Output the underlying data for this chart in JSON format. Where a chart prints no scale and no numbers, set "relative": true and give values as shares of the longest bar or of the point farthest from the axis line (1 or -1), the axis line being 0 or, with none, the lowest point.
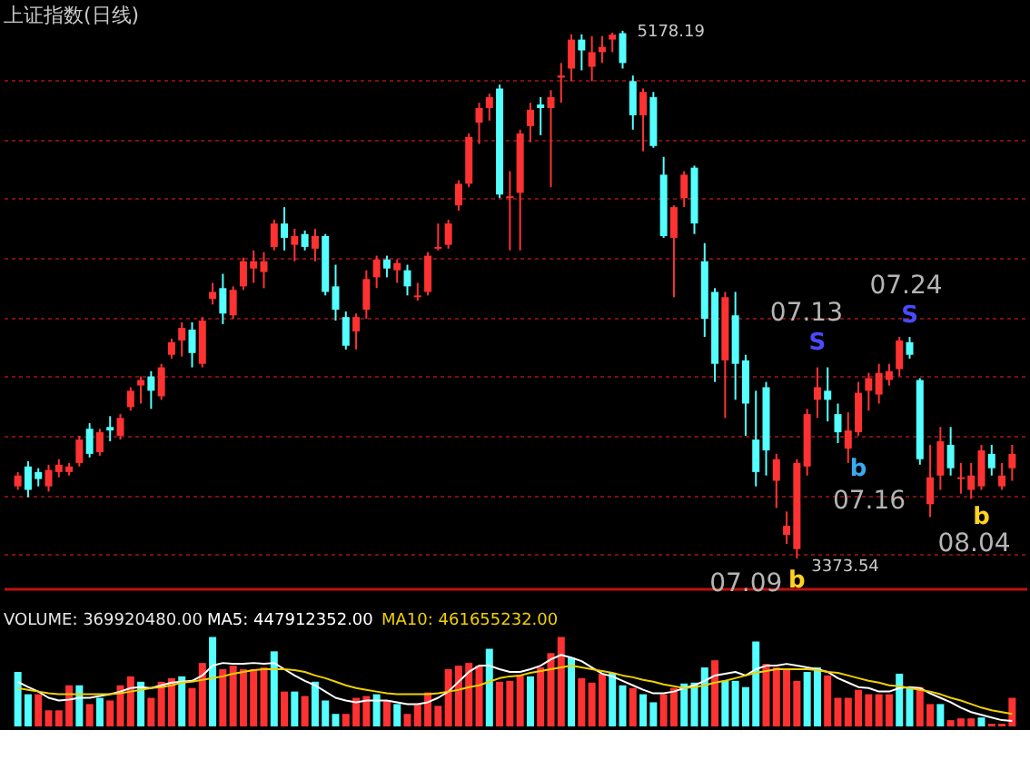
{
  "chart_data": [
    {
      "type": "candlestick",
      "title": "上证指数(日线)",
      "categories": [
        null,
        null,
        null,
        null,
        null,
        null,
        null,
        null,
        null,
        null,
        null,
        null,
        null,
        null,
        null,
        null,
        null,
        null,
        null,
        null,
        null,
        null,
        null,
        null,
        null,
        null,
        null,
        null,
        null,
        null,
        null,
        null,
        null,
        null,
        null,
        null,
        null,
        null,
        null,
        null,
        null,
        null,
        null,
        null,
        null,
        null,
        null,
        null,
        null,
        null,
        null,
        null,
        null,
        null,
        null,
        null,
        null,
        null,
        null,
        null,
        null,
        null,
        null,
        null,
        null,
        null,
        null,
        null,
        null,
        null,
        null,
        null,
        null,
        null,
        null,
        null,
        null,
        null,
        null,
        null,
        null,
        null,
        null,
        null,
        null,
        null,
        null,
        null,
        null,
        null,
        null,
        null,
        null,
        null,
        null,
        null,
        null,
        null
      ],
      "ohlc": [
        [
          3620,
          3669,
          3608,
          3657
        ],
        [
          3688,
          3706,
          3583,
          3608
        ],
        [
          3669,
          3682,
          3620,
          3645
        ],
        [
          3620,
          3694,
          3602,
          3676
        ],
        [
          3669,
          3713,
          3651,
          3694
        ],
        [
          3669,
          3700,
          3657,
          3688
        ],
        [
          3700,
          3793,
          3688,
          3780
        ],
        [
          3817,
          3836,
          3719,
          3731
        ],
        [
          3737,
          3817,
          3725,
          3805
        ],
        [
          3823,
          3860,
          3774,
          3811
        ],
        [
          3793,
          3867,
          3780,
          3854
        ],
        [
          3891,
          3959,
          3879,
          3947
        ],
        [
          3965,
          3996,
          3903,
          3984
        ],
        [
          3996,
          4014,
          3885,
          3947
        ],
        [
          3928,
          4039,
          3916,
          4027
        ],
        [
          4070,
          4125,
          4057,
          4113
        ],
        [
          4119,
          4181,
          4064,
          4162
        ],
        [
          4156,
          4181,
          4027,
          4076
        ],
        [
          4039,
          4199,
          4027,
          4187
        ],
        [
          4261,
          4316,
          4242,
          4285
        ],
        [
          4298,
          4347,
          4175,
          4211
        ],
        [
          4205,
          4304,
          4193,
          4292
        ],
        [
          4304,
          4402,
          4292,
          4390
        ],
        [
          4365,
          4427,
          4316,
          4390
        ],
        [
          4353,
          4421,
          4298,
          4390
        ],
        [
          4439,
          4532,
          4427,
          4519
        ],
        [
          4519,
          4575,
          4427,
          4470
        ],
        [
          4446,
          4501,
          4390,
          4476
        ],
        [
          4483,
          4495,
          4427,
          4439
        ],
        [
          4433,
          4501,
          4390,
          4476
        ],
        [
          4476,
          4483,
          4273,
          4285
        ],
        [
          4304,
          4378,
          4187,
          4224
        ],
        [
          4199,
          4218,
          4088,
          4101
        ],
        [
          4150,
          4211,
          4088,
          4199
        ],
        [
          4224,
          4359,
          4193,
          4329
        ],
        [
          4335,
          4409,
          4298,
          4396
        ],
        [
          4396,
          4409,
          4335,
          4365
        ],
        [
          4359,
          4396,
          4316,
          4384
        ],
        [
          4359,
          4378,
          4273,
          4304
        ],
        [
          4267,
          4316,
          4255,
          4273
        ],
        [
          4285,
          4421,
          4273,
          4409
        ],
        [
          4433,
          4519,
          4427,
          4439
        ],
        [
          4446,
          4532,
          4433,
          4519
        ],
        [
          4581,
          4667,
          4563,
          4655
        ],
        [
          4655,
          4827,
          4643,
          4815
        ],
        [
          4864,
          4932,
          4791,
          4914
        ],
        [
          4914,
          4963,
          4871,
          4951
        ],
        [
          4981,
          4994,
          4606,
          4618
        ],
        [
          4606,
          4698,
          4427,
          4612
        ],
        [
          4624,
          4840,
          4427,
          4827
        ],
        [
          4852,
          4932,
          4797,
          4908
        ],
        [
          4926,
          4951,
          4821,
          4914
        ],
        [
          4914,
          4975,
          4643,
          4951
        ],
        [
          5018,
          5068,
          4932,
          5025
        ],
        [
          5049,
          5166,
          5006,
          5148
        ],
        [
          5148,
          5166,
          5043,
          5111
        ],
        [
          5055,
          5160,
          5006,
          5105
        ],
        [
          5105,
          5160,
          5068,
          5123
        ],
        [
          5148,
          5172,
          5105,
          5165
        ],
        [
          5170,
          5178.19,
          5049,
          5068
        ],
        [
          5006,
          5025,
          4840,
          4889
        ],
        [
          4889,
          4981,
          4766,
          4969
        ],
        [
          4951,
          4969,
          4778,
          4784
        ],
        [
          4686,
          4747,
          4470,
          4476
        ],
        [
          4470,
          4581,
          4267,
          4575
        ],
        [
          4606,
          4698,
          4575,
          4686
        ],
        [
          4710,
          4717,
          4483,
          4519
        ],
        [
          4390,
          4452,
          4131,
          4193
        ],
        [
          4285,
          4298,
          3977,
          4039
        ],
        [
          4051,
          4285,
          3854,
          4267
        ],
        [
          4205,
          4285,
          3916,
          4039
        ],
        [
          4051,
          4070,
          3793,
          3903
        ],
        [
          3780,
          3947,
          3620,
          3669
        ],
        [
          3959,
          3977,
          3657,
          3743
        ],
        [
          3639,
          3731,
          3546,
          3713
        ],
        [
          3454,
          3534,
          3423,
          3485
        ],
        [
          3405,
          3713,
          3373.54,
          3700
        ],
        [
          3688,
          3885,
          3657,
          3867
        ],
        [
          3916,
          4027,
          3854,
          3959
        ],
        [
          3947,
          4027,
          3842,
          3916
        ],
        [
          3867,
          3903,
          3768,
          3805
        ],
        [
          3749,
          3873,
          3700,
          3811
        ],
        [
          3805,
          3977,
          3793,
          3940
        ],
        [
          3947,
          4008,
          3879,
          3990
        ],
        [
          3934,
          4039,
          3903,
          4008
        ],
        [
          3984,
          4039,
          3965,
          4014
        ],
        [
          4021,
          4131,
          3996,
          4119
        ],
        [
          4113,
          4131,
          4057,
          4070
        ],
        [
          3984,
          3990,
          3694,
          3713
        ],
        [
          3559,
          3762,
          3515,
          3651
        ],
        [
          3657,
          3823,
          3608,
          3774
        ],
        [
          3762,
          3823,
          3657,
          3682
        ],
        [
          3645,
          3700,
          3595,
          3651
        ],
        [
          3608,
          3700,
          3577,
          3657
        ],
        [
          3620,
          3762,
          3608,
          3743
        ],
        [
          3731,
          3762,
          3657,
          3682
        ],
        [
          3620,
          3700,
          3608,
          3657
        ],
        [
          3682,
          3762,
          3639,
          3731
        ]
      ],
      "colors": [
        "#ff3232",
        "#54ffff",
        "#54ffff",
        "#ff3232",
        "#ff3232",
        "#ff3232",
        "#ff3232",
        "#54ffff",
        "#ff3232",
        "#54ffff",
        "#ff3232",
        "#ff3232",
        "#ff3232",
        "#54ffff",
        "#ff3232",
        "#ff3232",
        "#ff3232",
        "#54ffff",
        "#ff3232",
        "#ff3232",
        "#54ffff",
        "#ff3232",
        "#ff3232",
        "#ff3232",
        "#ff3232",
        "#ff3232",
        "#54ffff",
        "#ff3232",
        "#54ffff",
        "#ff3232",
        "#54ffff",
        "#54ffff",
        "#54ffff",
        "#ff3232",
        "#ff3232",
        "#ff3232",
        "#54ffff",
        "#ff3232",
        "#54ffff",
        "#ff3232",
        "#ff3232",
        "#ff3232",
        "#ff3232",
        "#ff3232",
        "#ff3232",
        "#ff3232",
        "#ff3232",
        "#54ffff",
        "#ff3232",
        "#ff3232",
        "#ff3232",
        "#54ffff",
        "#ff3232",
        "#ff3232",
        "#ff3232",
        "#54ffff",
        "#ff3232",
        "#ff3232",
        "#ff3232",
        "#54ffff",
        "#54ffff",
        "#ff3232",
        "#54ffff",
        "#54ffff",
        "#ff3232",
        "#ff3232",
        "#54ffff",
        "#54ffff",
        "#54ffff",
        "#ff3232",
        "#54ffff",
        "#54ffff",
        "#54ffff",
        "#54ffff",
        "#ff3232",
        "#ff3232",
        "#ff3232",
        "#ff3232",
        "#ff3232",
        "#54ffff",
        "#54ffff",
        "#ff3232",
        "#ff3232",
        "#ff3232",
        "#ff3232",
        "#ff3232",
        "#ff3232",
        "#54ffff",
        "#54ffff",
        "#ff3232",
        "#ff3232",
        "#54ffff",
        "#ff3232",
        "#ff3232",
        "#ff3232",
        "#54ffff",
        "#ff3232",
        "#ff3232"
      ],
      "ylim": [
        3271,
        5271
      ],
      "yticks": [
        {
          "value": 3386,
          "label": null
        },
        {
          "value": 3590,
          "label": null
        },
        {
          "value": 3793,
          "label": null
        },
        {
          "value": 3996,
          "label": null
        },
        {
          "value": 4199,
          "label": null
        },
        {
          "value": 4402,
          "label": null
        },
        {
          "value": 4605,
          "label": null
        },
        {
          "value": 4808,
          "label": null
        },
        {
          "value": 5011,
          "label": null
        }
      ],
      "grid": "y",
      "tick_labels": false,
      "annotations": [
        "5178.19",
        "3373.54",
        "07.09",
        "07.13",
        "07.16",
        "07.24",
        "08.04",
        "S",
        "S",
        "b",
        "b",
        "b"
      ]
    },
    {
      "type": "bar",
      "relative": true,
      "legend": "top left",
      "tick_labels": false,
      "annotations": [
        "VOLUME: 369920480.00"
      ],
      "categories": [
        null,
        null,
        null,
        null,
        null,
        null,
        null,
        null,
        null,
        null,
        null,
        null,
        null,
        null,
        null,
        null,
        null,
        null,
        null,
        null,
        null,
        null,
        null,
        null,
        null,
        null,
        null,
        null,
        null,
        null,
        null,
        null,
        null,
        null,
        null,
        null,
        null,
        null,
        null,
        null,
        null,
        null,
        null,
        null,
        null,
        null,
        null,
        null,
        null,
        null,
        null,
        null,
        null,
        null,
        null,
        null,
        null,
        null,
        null,
        null,
        null,
        null,
        null,
        null,
        null,
        null,
        null,
        null,
        null,
        null,
        null,
        null,
        null,
        null,
        null,
        null,
        null,
        null,
        null,
        null,
        null,
        null,
        null,
        null,
        null,
        null,
        null,
        null,
        null,
        null,
        null,
        null,
        null,
        null,
        null,
        null,
        null,
        null
      ],
      "series": [
        {
          "type": "bar",
          "colors": [
            "#54ffff",
            "#54ffff",
            "#ff3232",
            "#ff3232",
            "#ff3232",
            "#ff3232",
            "#54ffff",
            "#ff3232",
            "#54ffff",
            "#ff3232",
            "#ff3232",
            "#ff3232",
            "#54ffff",
            "#ff3232",
            "#ff3232",
            "#ff3232",
            "#54ffff",
            "#ff3232",
            "#ff3232",
            "#54ffff",
            "#ff3232",
            "#ff3232",
            "#ff3232",
            "#ff3232",
            "#ff3232",
            "#54ffff",
            "#ff3232",
            "#54ffff",
            "#ff3232",
            "#54ffff",
            "#54ffff",
            "#54ffff",
            "#ff3232",
            "#ff3232",
            "#ff3232",
            "#54ffff",
            "#ff3232",
            "#54ffff",
            "#ff3232",
            "#ff3232",
            "#ff3232",
            "#ff3232",
            "#ff3232",
            "#ff3232",
            "#ff3232",
            "#ff3232",
            "#54ffff",
            "#ff3232",
            "#ff3232",
            "#ff3232",
            "#54ffff",
            "#ff3232",
            "#ff3232",
            "#ff3232",
            "#54ffff",
            "#ff3232",
            "#ff3232",
            "#ff3232",
            "#54ffff",
            "#54ffff",
            "#ff3232",
            "#54ffff",
            "#54ffff",
            "#ff3232",
            "#ff3232",
            "#54ffff",
            "#54ffff",
            "#54ffff",
            "#ff3232",
            "#54ffff",
            "#54ffff",
            "#54ffff",
            "#54ffff",
            "#ff3232",
            "#ff3232",
            "#ff3232",
            "#ff3232",
            "#54ffff",
            "#54ffff",
            "#ff3232",
            "#ff3232",
            "#ff3232",
            "#ff3232",
            "#ff3232",
            "#ff3232",
            "#ff3232",
            "#54ffff",
            "#54ffff",
            "#ff3232",
            "#ff3232",
            "#54ffff",
            "#ff3232",
            "#ff3232",
            "#ff3232",
            "#54ffff",
            "#ff3232",
            "#ff3232",
            "#ff3232"
          ],
          "values": [
            0.61,
            0.36,
            0.36,
            0.18,
            0.18,
            0.46,
            0.46,
            0.25,
            0.32,
            0.29,
            0.46,
            0.56,
            0.5,
            0.32,
            0.5,
            0.54,
            0.56,
            0.43,
            0.71,
            1,
            0.64,
            0.68,
            0.64,
            0.64,
            0.66,
            0.84,
            0.39,
            0.39,
            0.34,
            0.5,
            0.29,
            0.14,
            0.14,
            0.32,
            0.34,
            0.36,
            0.29,
            0.25,
            0.14,
            0.25,
            0.38,
            0.23,
            0.64,
            0.68,
            0.71,
            0.68,
            0.87,
            0.5,
            0.51,
            0.57,
            0.56,
            0.66,
            0.82,
            1,
            0.77,
            0.54,
            0.49,
            0.59,
            0.6,
            0.46,
            0.43,
            0.36,
            0.27,
            0.36,
            0.43,
            0.48,
            0.49,
            0.66,
            0.74,
            0.51,
            0.51,
            0.44,
            0.95,
            0.7,
            0.66,
            0.64,
            0.51,
            0.61,
            0.66,
            0.57,
            0.32,
            0.32,
            0.41,
            0.36,
            0.36,
            0.36,
            0.59,
            0.44,
            0.44,
            0.25,
            0.25,
            0.07,
            0.09,
            0.09,
            0.1,
            0.03,
            0.03,
            0.32
          ]
        },
        {
          "name": "MA5: 447912352.00",
          "type": "line",
          "color": "#ffffff",
          "values": [
            0.5,
            0.44,
            0.39,
            0.32,
            0.29,
            0.3,
            0.32,
            0.32,
            0.34,
            0.36,
            0.39,
            0.43,
            0.44,
            0.43,
            0.46,
            0.49,
            0.5,
            0.51,
            0.57,
            0.68,
            0.71,
            0.7,
            0.7,
            0.71,
            0.7,
            0.71,
            0.64,
            0.57,
            0.51,
            0.46,
            0.39,
            0.32,
            0.29,
            0.27,
            0.29,
            0.29,
            0.29,
            0.27,
            0.25,
            0.25,
            0.27,
            0.32,
            0.39,
            0.5,
            0.61,
            0.68,
            0.68,
            0.64,
            0.61,
            0.61,
            0.64,
            0.68,
            0.75,
            0.8,
            0.77,
            0.73,
            0.66,
            0.59,
            0.56,
            0.51,
            0.46,
            0.41,
            0.37,
            0.37,
            0.39,
            0.43,
            0.46,
            0.51,
            0.57,
            0.59,
            0.61,
            0.57,
            0.64,
            0.68,
            0.68,
            0.7,
            0.68,
            0.66,
            0.64,
            0.61,
            0.54,
            0.49,
            0.44,
            0.43,
            0.39,
            0.39,
            0.43,
            0.44,
            0.43,
            0.37,
            0.32,
            0.27,
            0.21,
            0.16,
            0.13,
            0.1,
            0.07,
            0.06
          ]
        },
        {
          "name": "MA10: 461655232.00",
          "type": "line",
          "color": "#f0d000",
          "values": [
            0.43,
            0.41,
            0.39,
            0.37,
            0.36,
            0.36,
            0.36,
            0.36,
            0.36,
            0.36,
            0.37,
            0.39,
            0.41,
            0.43,
            0.44,
            0.46,
            0.49,
            0.5,
            0.52,
            0.54,
            0.56,
            0.59,
            0.61,
            0.63,
            0.64,
            0.64,
            0.64,
            0.63,
            0.61,
            0.57,
            0.54,
            0.5,
            0.46,
            0.43,
            0.41,
            0.39,
            0.37,
            0.36,
            0.36,
            0.36,
            0.36,
            0.37,
            0.39,
            0.41,
            0.44,
            0.46,
            0.5,
            0.54,
            0.56,
            0.57,
            0.6,
            0.62,
            0.64,
            0.66,
            0.68,
            0.66,
            0.64,
            0.62,
            0.6,
            0.57,
            0.55,
            0.52,
            0.5,
            0.47,
            0.45,
            0.43,
            0.44,
            0.46,
            0.49,
            0.51,
            0.54,
            0.57,
            0.6,
            0.62,
            0.64,
            0.64,
            0.64,
            0.64,
            0.63,
            0.61,
            0.6,
            0.57,
            0.54,
            0.51,
            0.49,
            0.46,
            0.45,
            0.43,
            0.41,
            0.39,
            0.36,
            0.32,
            0.29,
            0.25,
            0.21,
            0.18,
            0.16,
            0.14
          ]
        }
      ]
    }
  ]
}
